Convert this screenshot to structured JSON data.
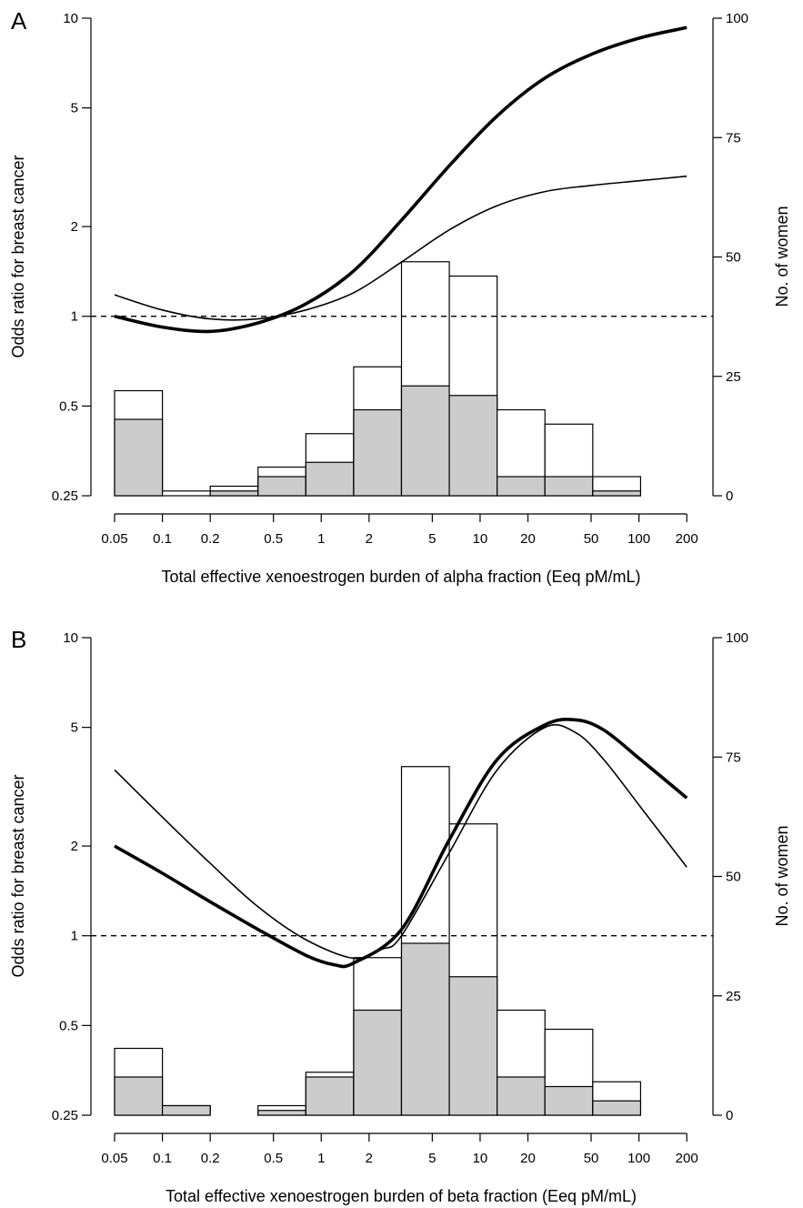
{
  "chart_data": [
    {
      "panel_label": "A",
      "type": "bar",
      "xlabel": "Total effective xenoestrogen burden of alpha fraction (Eeq pM/mL)",
      "ylabel_left": "Odds ratio for breast cancer",
      "ylabel_right": "No. of women",
      "x_scale": "log",
      "y_left_scale": "log",
      "x_ticks": [
        "0.05",
        "0.1",
        "0.2",
        "0.5",
        "1",
        "2",
        "5",
        "10",
        "20",
        "50",
        "100",
        "200"
      ],
      "y_left_ticks": [
        "0.25",
        "0.5",
        "1",
        "2",
        "5",
        "10"
      ],
      "y_right_ticks": [
        "0",
        "25",
        "50",
        "75",
        "100"
      ],
      "ylim_left": [
        0.25,
        10
      ],
      "ylim_right": [
        0,
        100
      ],
      "histogram": {
        "bin_edges": [
          0.05,
          0.1,
          0.2,
          0.4,
          0.8,
          1.6,
          3.2,
          6.4,
          12.8,
          25.6,
          51.2,
          102.4,
          204.8
        ],
        "total": [
          22,
          1,
          2,
          6,
          13,
          27,
          49,
          46,
          18,
          15,
          4,
          0
        ],
        "shaded": [
          16,
          0,
          1,
          4,
          7,
          18,
          23,
          21,
          4,
          4,
          1,
          0
        ]
      },
      "curves": {
        "bold": [
          [
            0.05,
            1.0
          ],
          [
            0.1,
            0.92
          ],
          [
            0.2,
            0.89
          ],
          [
            0.4,
            0.95
          ],
          [
            0.8,
            1.1
          ],
          [
            1.6,
            1.42
          ],
          [
            3.2,
            2.1
          ],
          [
            6.4,
            3.2
          ],
          [
            12.8,
            4.7
          ],
          [
            25.6,
            6.3
          ],
          [
            51.2,
            7.6
          ],
          [
            102.4,
            8.6
          ],
          [
            200,
            9.3
          ]
        ],
        "thin": [
          [
            0.05,
            1.18
          ],
          [
            0.1,
            1.05
          ],
          [
            0.2,
            0.98
          ],
          [
            0.4,
            0.98
          ],
          [
            0.8,
            1.05
          ],
          [
            1.6,
            1.2
          ],
          [
            3.2,
            1.52
          ],
          [
            6.4,
            1.95
          ],
          [
            12.8,
            2.35
          ],
          [
            25.6,
            2.62
          ],
          [
            51.2,
            2.75
          ],
          [
            102.4,
            2.85
          ],
          [
            200,
            2.95
          ]
        ]
      },
      "reference_line": 1
    },
    {
      "panel_label": "B",
      "type": "bar",
      "xlabel": "Total effective xenoestrogen burden of beta fraction (Eeq pM/mL)",
      "ylabel_left": "Odds ratio for breast cancer",
      "ylabel_right": "No. of women",
      "x_scale": "log",
      "y_left_scale": "log",
      "x_ticks": [
        "0.05",
        "0.1",
        "0.2",
        "0.5",
        "1",
        "2",
        "5",
        "10",
        "20",
        "50",
        "100",
        "200"
      ],
      "y_left_ticks": [
        "0.25",
        "0.5",
        "1",
        "2",
        "5",
        "10"
      ],
      "y_right_ticks": [
        "0",
        "25",
        "50",
        "75",
        "100"
      ],
      "ylim_left": [
        0.25,
        10
      ],
      "ylim_right": [
        0,
        100
      ],
      "histogram": {
        "bin_edges": [
          0.05,
          0.1,
          0.2,
          0.4,
          0.8,
          1.6,
          3.2,
          6.4,
          12.8,
          25.6,
          51.2,
          102.4,
          204.8
        ],
        "total": [
          14,
          2,
          0,
          2,
          9,
          33,
          73,
          61,
          22,
          18,
          7,
          0
        ],
        "shaded": [
          8,
          2,
          0,
          1,
          8,
          22,
          36,
          29,
          8,
          6,
          3,
          0
        ]
      },
      "curves": {
        "bold": [
          [
            0.05,
            2.0
          ],
          [
            0.1,
            1.62
          ],
          [
            0.2,
            1.3
          ],
          [
            0.4,
            1.05
          ],
          [
            0.8,
            0.86
          ],
          [
            1.2,
            0.8
          ],
          [
            1.6,
            0.81
          ],
          [
            3.2,
            1.05
          ],
          [
            6.4,
            2.1
          ],
          [
            12.8,
            3.9
          ],
          [
            25.6,
            5.1
          ],
          [
            40,
            5.3
          ],
          [
            60,
            4.9
          ],
          [
            102.4,
            3.9
          ],
          [
            200,
            2.9
          ]
        ],
        "thin": [
          [
            0.05,
            3.6
          ],
          [
            0.1,
            2.5
          ],
          [
            0.2,
            1.75
          ],
          [
            0.4,
            1.25
          ],
          [
            0.8,
            0.97
          ],
          [
            1.6,
            0.84
          ],
          [
            2.4,
            0.9
          ],
          [
            3.2,
            1.0
          ],
          [
            6.4,
            1.9
          ],
          [
            12.8,
            3.6
          ],
          [
            25.6,
            5.0
          ],
          [
            40,
            4.8
          ],
          [
            60,
            3.9
          ],
          [
            102.4,
            2.7
          ],
          [
            200,
            1.7
          ]
        ]
      },
      "reference_line": 1
    }
  ]
}
